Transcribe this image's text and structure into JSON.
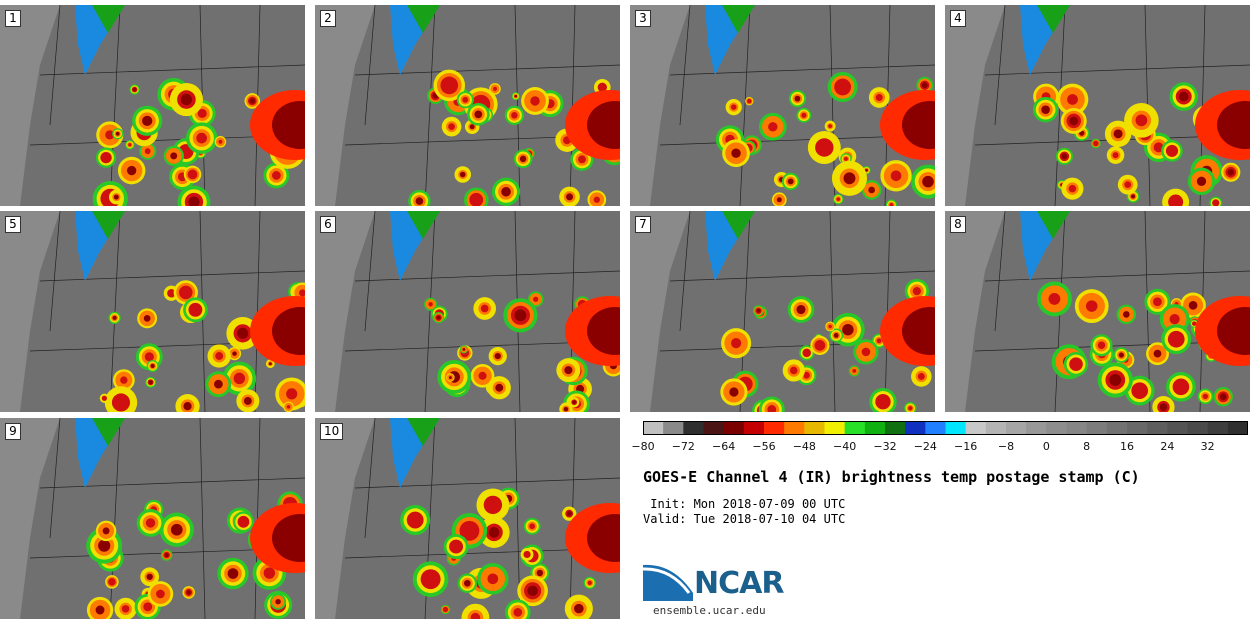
{
  "panels": [
    {
      "label": "1"
    },
    {
      "label": "2"
    },
    {
      "label": "3"
    },
    {
      "label": "4"
    },
    {
      "label": "5"
    },
    {
      "label": "6"
    },
    {
      "label": "7"
    },
    {
      "label": "8"
    },
    {
      "label": "9"
    },
    {
      "label": "10"
    }
  ],
  "colorbar": {
    "min": -80,
    "max": 40,
    "step": 4,
    "tick_labels": [
      "−80",
      "−72",
      "−64",
      "−56",
      "−48",
      "−40",
      "−32",
      "−24",
      "−16",
      "−8",
      "0",
      "8",
      "16",
      "24",
      "32"
    ],
    "colors": [
      "#c0c0c0",
      "#8a8a8a",
      "#2e2e2e",
      "#4a1414",
      "#7a0000",
      "#c40000",
      "#ff2a00",
      "#ff7a00",
      "#e6b800",
      "#f0f000",
      "#28e028",
      "#10b010",
      "#107010",
      "#1030c0",
      "#2080ff",
      "#00e6ff",
      "#c8c8c8",
      "#b4b4b4",
      "#a6a6a6",
      "#989898",
      "#8e8e8e",
      "#868686",
      "#7c7c7c",
      "#727272",
      "#686868",
      "#5e5e5e",
      "#545454",
      "#4a4a4a",
      "#3e3e3e",
      "#303030"
    ]
  },
  "title": "GOES-E Channel 4 (IR) brightness temp postage stamp (C)",
  "init": " Init: Mon 2018-07-09 00 UTC",
  "valid": "Valid: Tue 2018-07-10 04 UTC",
  "logo_text": "NCAR",
  "url": "ensemble.ucar.edu"
}
